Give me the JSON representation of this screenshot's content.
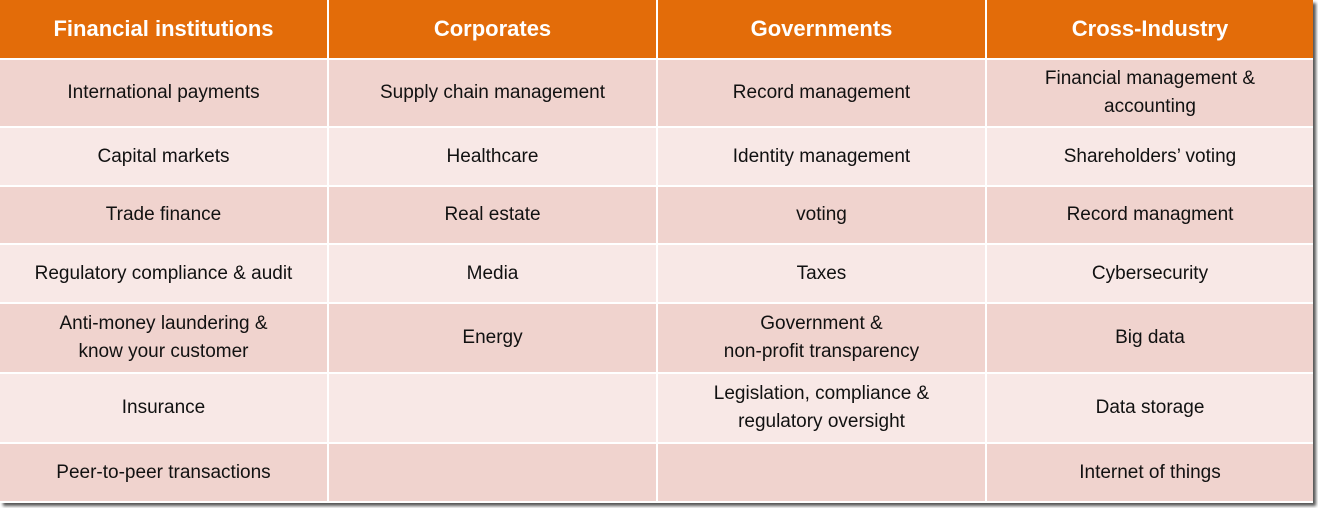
{
  "table": {
    "header": [
      "Financial institutions",
      "Corporates",
      "Governments",
      "Cross-Industry"
    ],
    "rows": [
      [
        "International payments",
        "Supply chain management",
        "Record management",
        "Financial management &\naccounting"
      ],
      [
        "Capital markets",
        "Healthcare",
        "Identity management",
        "Shareholders’ voting"
      ],
      [
        "Trade finance",
        "Real estate",
        "voting",
        "Record managment"
      ],
      [
        "Regulatory compliance & audit",
        "Media",
        "Taxes",
        "Cybersecurity"
      ],
      [
        "Anti-money laundering &\nknow your customer",
        "Energy",
        "Government &\nnon-profit transparency",
        "Big data"
      ],
      [
        "Insurance",
        null,
        "Legislation, compliance &\nregulatory oversight",
        "Data storage"
      ],
      [
        "Peer-to-peer transactions",
        null,
        null,
        "Internet of things"
      ]
    ]
  }
}
